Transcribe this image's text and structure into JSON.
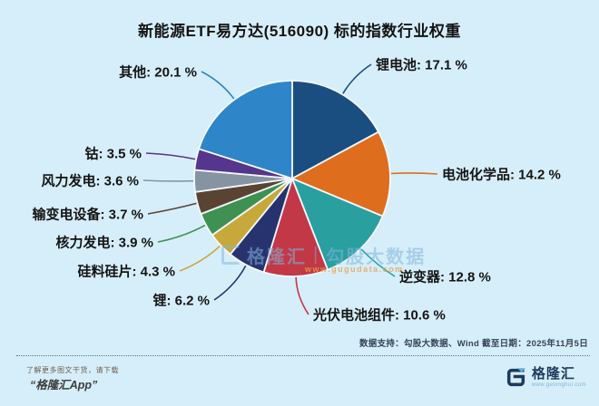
{
  "title": "新能源ETF易方达(516090) 标的指数行业权重",
  "chart_data": {
    "type": "pie",
    "title": "新能源ETF易方达(516090) 标的指数行业权重",
    "unit": "%",
    "start_angle_deg": 0,
    "direction": "clockwise",
    "slices": [
      {
        "label": "锂电池",
        "value": 17.1,
        "color": "#1a4e80"
      },
      {
        "label": "电池化学品",
        "value": 14.2,
        "color": "#df6d1e"
      },
      {
        "label": "逆变器",
        "value": 12.8,
        "color": "#2a9fa0"
      },
      {
        "label": "光伏电池组件",
        "value": 10.6,
        "color": "#c23847"
      },
      {
        "label": "锂",
        "value": 6.2,
        "color": "#27336f"
      },
      {
        "label": "硅料硅片",
        "value": 4.3,
        "color": "#c7a83a"
      },
      {
        "label": "核力发电",
        "value": 3.9,
        "color": "#3f9153"
      },
      {
        "label": "输变电设备",
        "value": 3.7,
        "color": "#594434"
      },
      {
        "label": "风力发电",
        "value": 3.6,
        "color": "#8694a2"
      },
      {
        "label": "钴",
        "value": 3.5,
        "color": "#55358d"
      },
      {
        "label": "其他",
        "value": 20.1,
        "color": "#2e86c8"
      }
    ]
  },
  "watermark": {
    "brand": "格隆汇",
    "divider": "|",
    "name": "勾股大数据",
    "url": "www.gugudata.com"
  },
  "source_note": "数据支持：勾股大数据、Wind 截至日期：2025年11月5日",
  "footer": {
    "promo_line1": "了解更多图文干货，请下载",
    "promo_line2": "“格隆汇App”",
    "logo_text": "格隆汇",
    "logo_url": "www.gelonghui.com"
  },
  "colors": {
    "background": "#d6eef9",
    "title_text": "#141414",
    "label_text": "#141414"
  }
}
